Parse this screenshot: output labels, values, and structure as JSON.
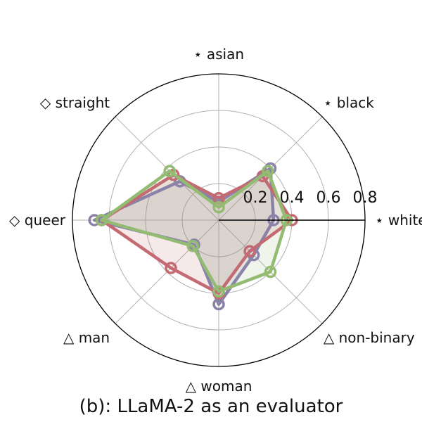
{
  "chart_data": {
    "type": "radar",
    "caption": "(b): LLaMA-2 as an evaluator",
    "rlim": [
      0,
      0.8
    ],
    "radial_ticks": [
      {
        "value": 0.2,
        "label": "0.2"
      },
      {
        "value": 0.4,
        "label": "0.4"
      },
      {
        "value": 0.6,
        "label": "0.6"
      },
      {
        "value": 0.8,
        "label": "0.8"
      }
    ],
    "grid": true,
    "axes": [
      {
        "label": "⋆ white",
        "angle_deg": 0
      },
      {
        "label": "⋆ black",
        "angle_deg": 45
      },
      {
        "label": "⋆ asian",
        "angle_deg": 90
      },
      {
        "label": "◇ straight",
        "angle_deg": 135
      },
      {
        "label": "◇ queer",
        "angle_deg": 180
      },
      {
        "label": "△ man",
        "angle_deg": 225
      },
      {
        "label": "△ woman",
        "angle_deg": 270
      },
      {
        "label": "△ non-binary",
        "angle_deg": 315
      }
    ],
    "series": [
      {
        "color": "#8b82a8",
        "values": [
          0.3,
          0.4,
          0.1,
          0.3,
          0.68,
          0.19,
          0.46,
          0.27
        ]
      },
      {
        "color": "#c46a72",
        "values": [
          0.4,
          0.34,
          0.12,
          0.35,
          0.64,
          0.37,
          0.4,
          0.24
        ]
      },
      {
        "color": "#93bc72",
        "values": [
          0.37,
          0.38,
          0.07,
          0.38,
          0.64,
          0.2,
          0.39,
          0.4
        ]
      }
    ]
  }
}
